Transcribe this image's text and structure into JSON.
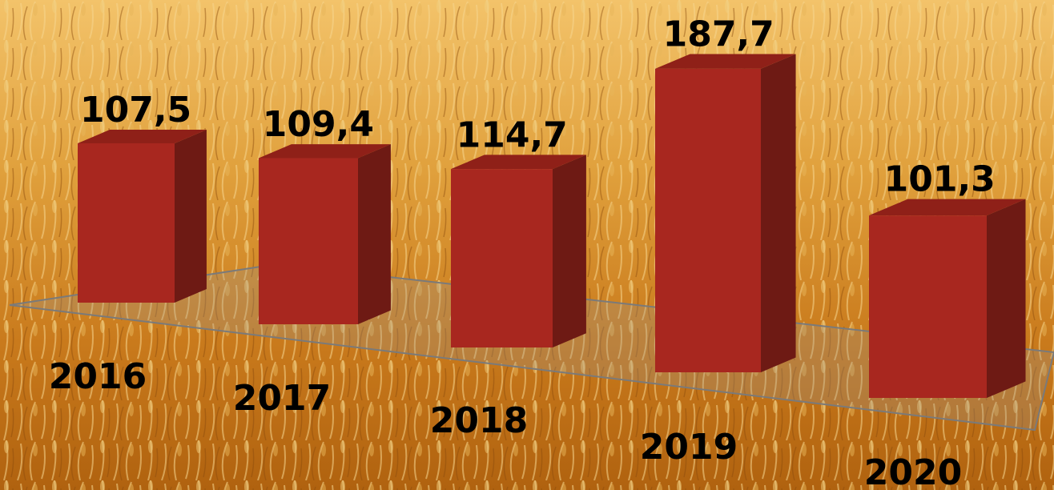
{
  "chart_data": {
    "type": "bar3d",
    "categories": [
      "2016",
      "2017",
      "2018",
      "2019",
      "2020"
    ],
    "values": [
      107.5,
      109.4,
      114.7,
      187.7,
      101.3
    ],
    "value_labels": [
      "107,5",
      "109,4",
      "114,7",
      "187,7",
      "101,3"
    ],
    "color": "#a8271f"
  }
}
